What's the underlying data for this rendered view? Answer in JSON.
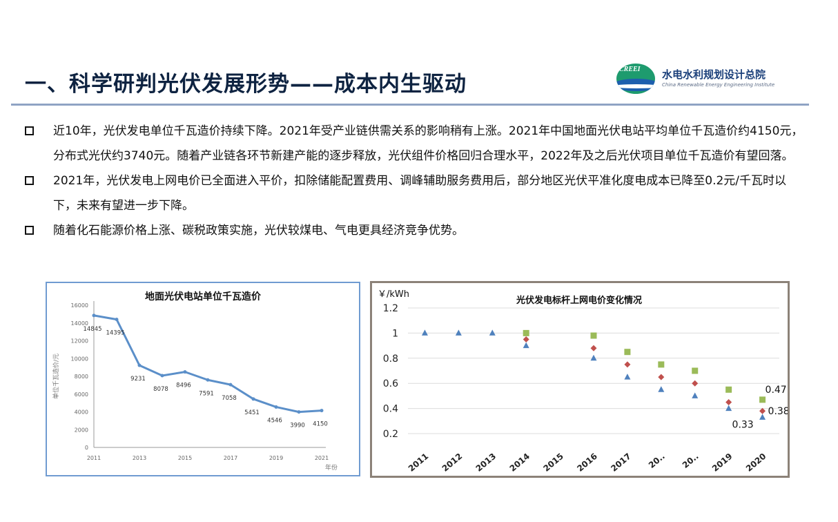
{
  "header": {
    "title": "一、科学研判光伏发展形势——成本内生驱动",
    "logo_tag": "CREEI",
    "logo_cn": "水电水利规划设计总院",
    "logo_en": "China Renewable Energy Engineering Institute"
  },
  "bullets": [
    "近10年，光伏发电单位千瓦造价持续下降。2021年受产业链供需关系的影响稍有上涨。2021年中国地面光伏电站平均单位千瓦造价约4150元，分布式光伏约3740元。随着产业链各环节新建产能的逐步释放，光伏组件价格回归合理水平，2022年及之后光伏项目单位千瓦造价有望回落。",
    "2021年，光伏发电上网电价已全面进入平价，扣除储能配置费用、调峰辅助服务费用后，部分地区光伏平准化度电成本已降至0.2元/千瓦时以下，未来有望进一步下降。",
    "随着化石能源价格上涨、碳税政策实施，光伏较煤电、气电更具经济竞争优势。"
  ],
  "chart_data": [
    {
      "type": "line",
      "title": "地面光伏电站单位千瓦造价",
      "ylabel": "单位千瓦造价/元",
      "xlabel": "年份",
      "x": [
        2011,
        2012,
        2013,
        2014,
        2015,
        2016,
        2017,
        2018,
        2019,
        2020,
        2021
      ],
      "values": [
        14845,
        14395,
        9231,
        8078,
        8496,
        7591,
        7058,
        5451,
        4546,
        3990,
        4150
      ],
      "data_labels": [
        "14845",
        "14395",
        "9231",
        "8078",
        "8496",
        "7591",
        "7058",
        "5451",
        "4546",
        "3990",
        "4150"
      ],
      "x_ticks": [
        "2011",
        "2013",
        "2015",
        "2017",
        "2019",
        "2021"
      ],
      "y_ticks": [
        "0",
        "2000",
        "4000",
        "6000",
        "8000",
        "10000",
        "12000",
        "14000",
        "16000"
      ],
      "ylim": [
        0,
        16000
      ],
      "grid": false,
      "color": "#5b8fc9"
    },
    {
      "type": "scatter",
      "title": "光伏发电标杆上网电价变化情况",
      "ylabel": "￥/kWh",
      "categories": [
        "2011",
        "2012",
        "2013",
        "2014",
        "2015",
        "2016",
        "2017",
        "20..",
        "20..",
        "2019",
        "2020"
      ],
      "y_ticks": [
        "0.2",
        "0.4",
        "0.6",
        "0.8",
        "1",
        "1.2"
      ],
      "ylim": [
        0.2,
        1.2
      ],
      "grid": true,
      "series": [
        {
          "marker": "square",
          "color": "#9bbb59",
          "values": [
            null,
            null,
            null,
            1.0,
            null,
            0.98,
            0.85,
            0.75,
            0.7,
            0.55,
            0.47
          ]
        },
        {
          "marker": "diamond",
          "color": "#c0504d",
          "values": [
            null,
            null,
            null,
            0.95,
            null,
            0.88,
            0.75,
            0.65,
            0.6,
            0.45,
            0.38
          ]
        },
        {
          "marker": "triangle",
          "color": "#4f81bd",
          "values": [
            1.0,
            1.0,
            1.0,
            0.9,
            null,
            0.8,
            0.65,
            0.55,
            0.5,
            0.4,
            0.33
          ]
        }
      ],
      "annotations": [
        "0.47",
        "0.38",
        "0.33"
      ]
    }
  ]
}
